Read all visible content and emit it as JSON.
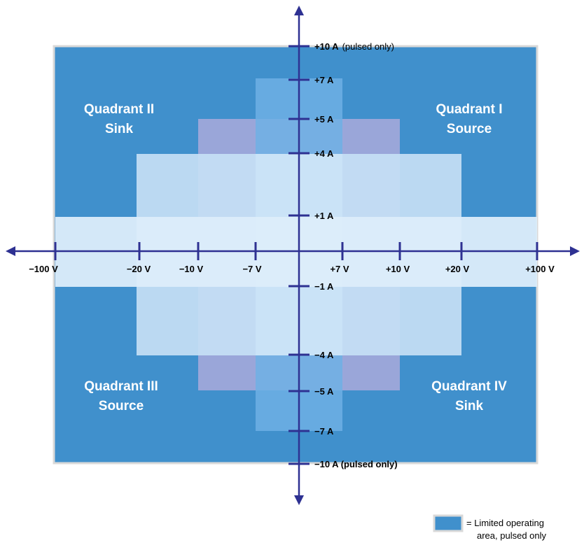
{
  "colors": {
    "limited_area": "#4090cc",
    "axis": "#2e3192",
    "frame": "#d9d9d9",
    "region_light": "#d8ecfa",
    "region_mid": "#c6e0f5",
    "region_violet": "#9aa6d9",
    "region_bright": "#6eb0e4"
  },
  "quadrants": {
    "q1": {
      "line1": "Quadrant I",
      "line2": "Source"
    },
    "q2": {
      "line1": "Quadrant II",
      "line2": "Sink"
    },
    "q3": {
      "line1": "Quadrant III",
      "line2": "Source"
    },
    "q4": {
      "line1": "Quadrant IV",
      "line2": "Sink"
    }
  },
  "voltage_ticks": [
    "−100 V",
    "−20 V",
    "−10 V",
    "−7 V",
    "+7 V",
    "+10 V",
    "+20 V",
    "+100 V"
  ],
  "current_ticks": {
    "plus_10": {
      "main": "+10 A",
      "note": "(pulsed only)"
    },
    "plus_7": "+7 A",
    "plus_5": "+5 A",
    "plus_4": "+4 A",
    "plus_1": "+1 A",
    "minus_1": "−1 A",
    "minus_4": "−4 A",
    "minus_5": "−5 A",
    "minus_7": "−7 A",
    "minus_10": "−10 A (pulsed only)"
  },
  "legend": {
    "line1": "= Limited operating",
    "line2": "area, pulsed only"
  }
}
